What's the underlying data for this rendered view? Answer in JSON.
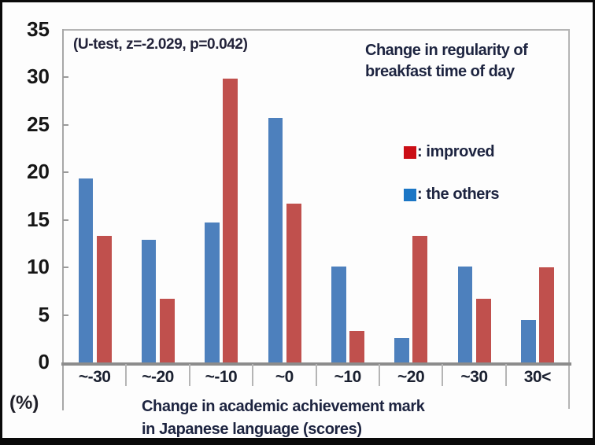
{
  "annotation": "(U-test, z=-2.029, p=0.042)",
  "title_lines": [
    "Change in regularity of",
    "breakfast time of day"
  ],
  "unit_label": "(%)",
  "legend": [
    {
      "label": ": improved",
      "swatch_color": "#cb0e16"
    },
    {
      "label": ": the others",
      "swatch_color": "#1b76c5"
    }
  ],
  "chart_data": {
    "type": "bar",
    "title": "Change in regularity of breakfast time of day",
    "annotation": "(U-test, z=-2.029, p=0.042)",
    "categories": [
      "~-30",
      "~-20",
      "~-10",
      "~0",
      "~10",
      "~20",
      "~30",
      "30<"
    ],
    "series": [
      {
        "name": "the others",
        "color": "#4d80bd",
        "values": [
          19.4,
          12.9,
          14.7,
          25.7,
          10.1,
          2.6,
          10.1,
          4.5
        ]
      },
      {
        "name": "improved",
        "color": "#c0504d",
        "values": [
          13.3,
          6.7,
          29.9,
          16.7,
          3.3,
          13.3,
          6.7,
          10.0
        ]
      }
    ],
    "xlabel_lines": [
      "Change in academic achievement mark",
      "in Japanese language (scores)"
    ],
    "xlabel": "Change in academic achievement mark in Japanese language (scores)",
    "ylabel": "(%)",
    "yticks": [
      0,
      5,
      10,
      15,
      20,
      25,
      30,
      35
    ],
    "ylim": [
      0,
      35
    ],
    "grid": false,
    "legend_position": "upper right"
  }
}
